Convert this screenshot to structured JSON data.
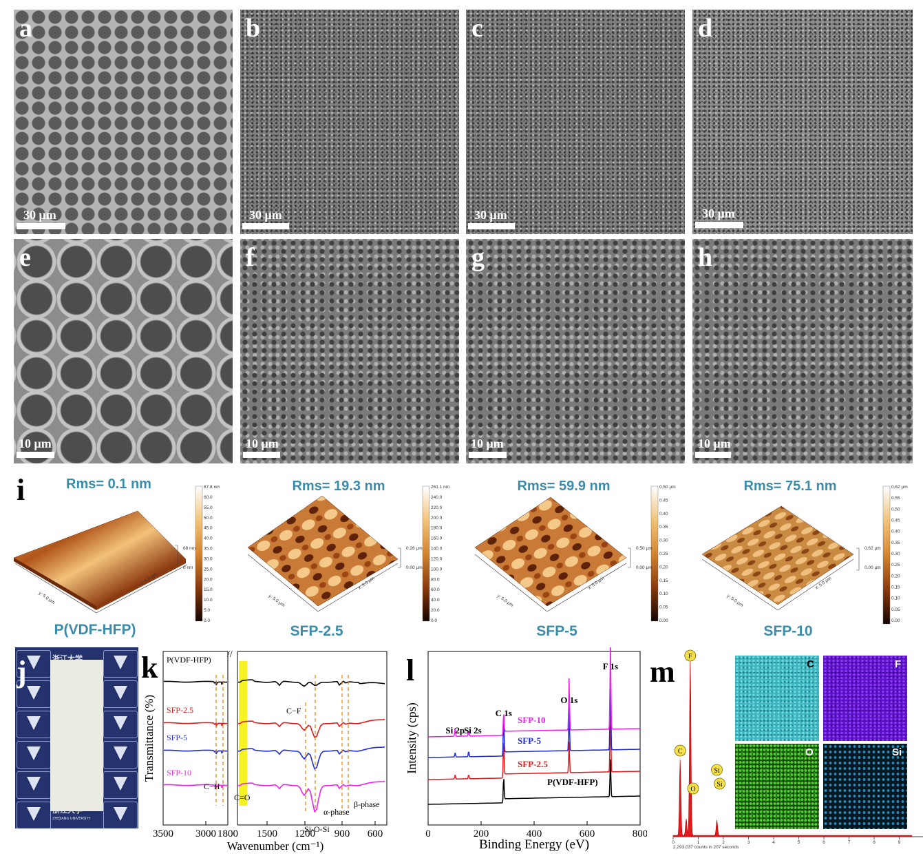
{
  "sem_panels": [
    {
      "letter": "a",
      "scale": "30 μm"
    },
    {
      "letter": "b",
      "scale": "30 μm"
    },
    {
      "letter": "c",
      "scale": "30 μm"
    },
    {
      "letter": "d",
      "scale": "30 μm"
    },
    {
      "letter": "e",
      "scale": "10 μm"
    },
    {
      "letter": "f",
      "scale": "10 μm"
    },
    {
      "letter": "g",
      "scale": "10 μm"
    },
    {
      "letter": "h",
      "scale": "10 μm"
    }
  ],
  "afm": {
    "letter": "i",
    "panels": [
      {
        "rms": "Rms= 0.1 nm",
        "name": "P(VDF-HFP)",
        "height": "68 nm",
        "zero": "0 nm",
        "scale_ticks": [
          "67.8 nm",
          "60.0",
          "55.0",
          "50.0",
          "45.0",
          "40.0",
          "35.0",
          "30.0",
          "25.0",
          "20.0",
          "15.0",
          "10.0",
          "5.0",
          "0.0"
        ]
      },
      {
        "rms": "Rms= 19.3 nm",
        "name": "SFP-2.5",
        "height": "0.26 μm",
        "zero": "0.00 μm",
        "scale_ticks": [
          "261.1 nm",
          "240.0",
          "220.0",
          "200.0",
          "180.0",
          "160.0",
          "140.0",
          "120.0",
          "100.0",
          "80.0",
          "60.0",
          "40.0",
          "20.0",
          "0.0"
        ]
      },
      {
        "rms": "Rms= 59.9 nm",
        "name": "SFP-5",
        "height": "0.50 μm",
        "zero": "0.00 μm",
        "scale_ticks": [
          "0.50 μm",
          "0.45",
          "0.40",
          "0.35",
          "0.30",
          "0.25",
          "0.20",
          "0.15",
          "0.10",
          "0.05",
          "0.00"
        ]
      },
      {
        "rms": "Rms= 75.1 nm",
        "name": "SFP-10",
        "height": "0.62 μm",
        "zero": "0.00 μm",
        "scale_ticks": [
          "0.62 μm",
          "0.55",
          "0.50",
          "0.45",
          "0.40",
          "0.35",
          "0.30",
          "0.25",
          "0.20",
          "0.15",
          "0.10",
          "0.05",
          "0.00"
        ]
      }
    ],
    "axis_x": "x: 5.0 μm",
    "axis_y": "y: 5.0 μm"
  },
  "photo": {
    "letter": "j",
    "logo_text": "浙江大学",
    "logo_sub": "ZHEJIANG UNIVERSITY"
  },
  "colors": {
    "black": "#000000",
    "red": "#e31a1c",
    "blue": "#1f2bd6",
    "magenta": "#f020f0",
    "orange": "#e07b00",
    "yellow": "#f6f000",
    "teal": "#3a8ca8"
  },
  "chart_data": [
    {
      "panel": "k",
      "type": "line",
      "xlabel": "Wavenumber (cm⁻¹)",
      "ylabel": "Transmittance (%)",
      "x_ticks": [
        "3500",
        "3000",
        "1800",
        "1500",
        "1200",
        "900",
        "600"
      ],
      "x_break": true,
      "series": [
        {
          "name": "P(VDF-HFP)",
          "color": "#000000"
        },
        {
          "name": "SFP-2.5",
          "color": "#e31a1c"
        },
        {
          "name": "SFP-5",
          "color": "#1f2bd6"
        },
        {
          "name": "SFP-10",
          "color": "#f020f0"
        }
      ],
      "annotations": [
        "C−F",
        "C−H",
        "C=O",
        "Si-O-Si",
        "α-phase",
        "β-phase"
      ]
    },
    {
      "panel": "l",
      "type": "line",
      "xlabel": "Binding Energy (eV)",
      "ylabel": "Intensity (cps)",
      "xlim": [
        0,
        800
      ],
      "x_ticks": [
        "0",
        "200",
        "400",
        "600",
        "800"
      ],
      "series": [
        {
          "name": "P(VDF-HFP)",
          "color": "#000000"
        },
        {
          "name": "SFP-2.5",
          "color": "#e31a1c"
        },
        {
          "name": "SFP-5",
          "color": "#1f2bd6"
        },
        {
          "name": "SFP-10",
          "color": "#f020f0"
        }
      ],
      "peaks": [
        {
          "label": "Si 2p",
          "x": 102
        },
        {
          "label": "Si 2s",
          "x": 153
        },
        {
          "label": "C 1s",
          "x": 285
        },
        {
          "label": "O 1s",
          "x": 532
        },
        {
          "label": "F 1s",
          "x": 688
        }
      ]
    },
    {
      "panel": "m",
      "type": "bar",
      "x_ticks": [
        "0",
        "1",
        "2",
        "3",
        "4",
        "5",
        "6",
        "7",
        "8",
        "9"
      ],
      "footer": "2,293,037 counts in 207 seconds",
      "peaks": [
        {
          "label": "C",
          "x": 0.28
        },
        {
          "label": "O",
          "x": 0.52
        },
        {
          "label": "F",
          "x": 0.68
        },
        {
          "label": "Si",
          "x": 1.74
        }
      ],
      "maps": [
        "C",
        "F",
        "O",
        "Si"
      ]
    }
  ]
}
